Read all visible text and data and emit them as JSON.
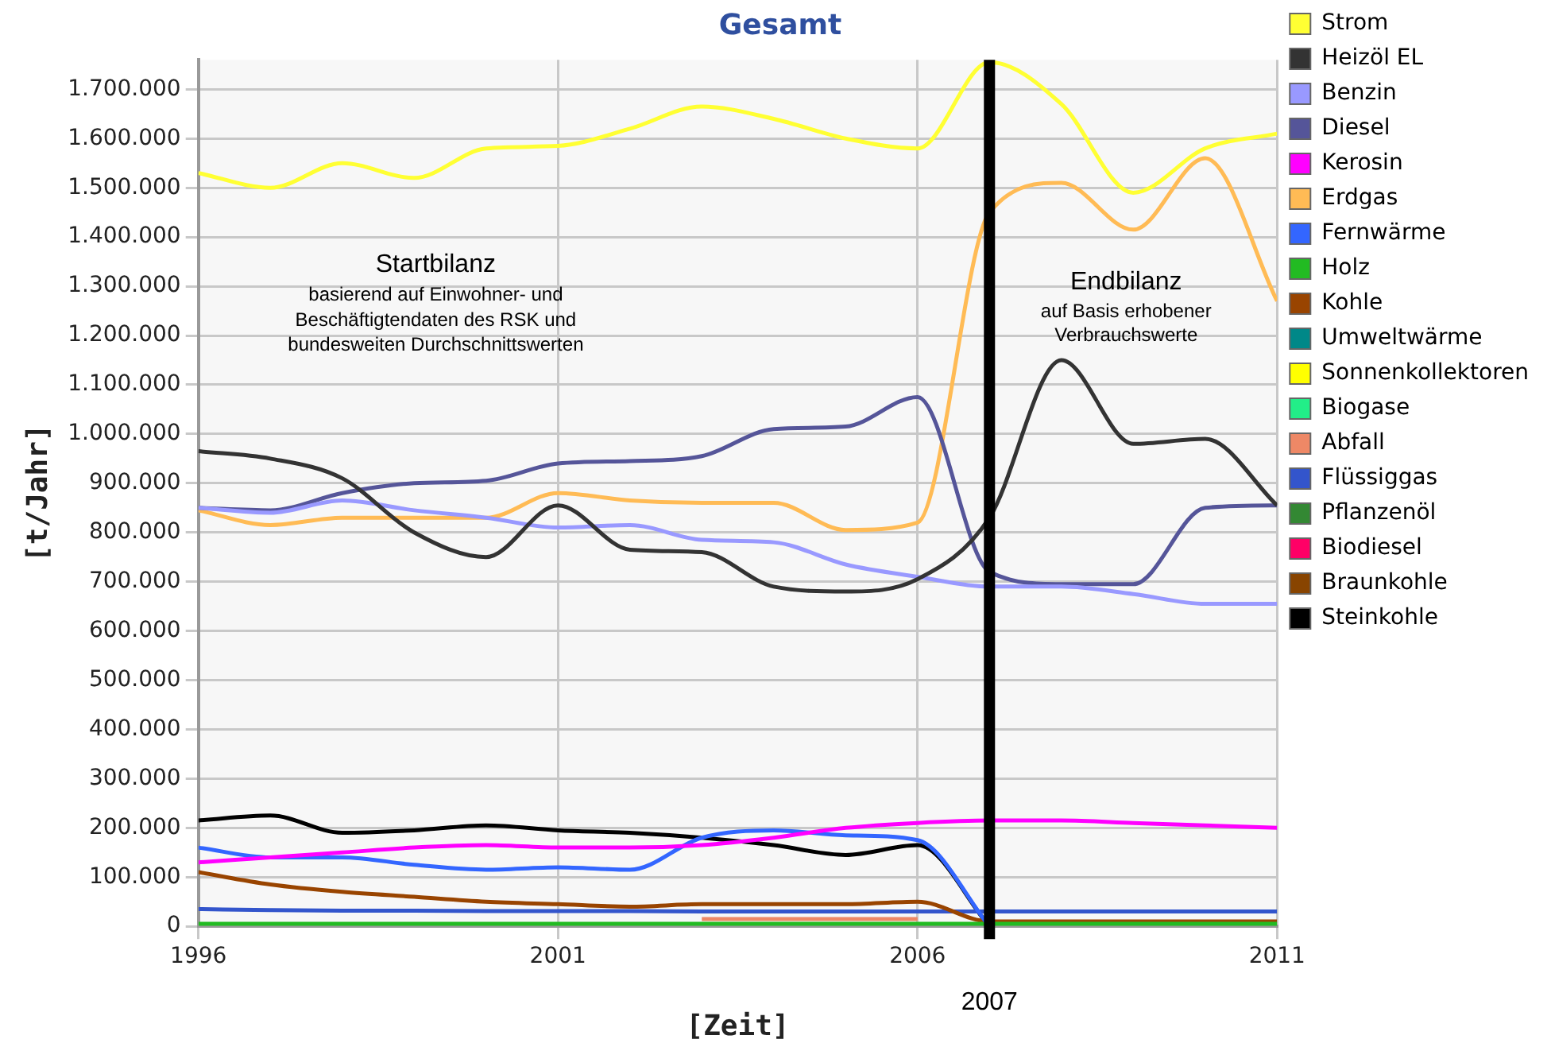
{
  "chart_data": {
    "type": "line",
    "title": "Gesamt",
    "xlabel": "[Zeit]",
    "ylabel": "[t/Jahr]",
    "x": [
      1996,
      1997,
      1998,
      1999,
      2000,
      2001,
      2002,
      2003,
      2004,
      2005,
      2006,
      2007,
      2008,
      2009,
      2010,
      2011
    ],
    "xlim": [
      1996,
      2011
    ],
    "xticks": [
      1996,
      2001,
      2006,
      2011
    ],
    "ylim": [
      0,
      1760000
    ],
    "yticks": [
      0,
      {
        "value": 100000,
        "label": "100.000"
      },
      {
        "value": 200000,
        "label": "200.000"
      },
      {
        "value": 300000,
        "label": "300.000"
      },
      {
        "value": 400000,
        "label": "400.000"
      },
      {
        "value": 500000,
        "label": "500.000"
      },
      {
        "value": 600000,
        "label": "600.000"
      },
      {
        "value": 700000,
        "label": "700.000"
      },
      {
        "value": 800000,
        "label": "800.000"
      },
      {
        "value": 900000,
        "label": "900.000"
      },
      {
        "value": 1000000,
        "label": "1.000.000"
      },
      {
        "value": 1100000,
        "label": "1.100.000"
      },
      {
        "value": 1200000,
        "label": "1.200.000"
      },
      {
        "value": 1300000,
        "label": "1.300.000"
      },
      {
        "value": 1400000,
        "label": "1.400.000"
      },
      {
        "value": 1500000,
        "label": "1.500.000"
      },
      {
        "value": 1600000,
        "label": "1.600.000"
      },
      {
        "value": 1700000,
        "label": "1.700.000"
      }
    ],
    "grid": true,
    "legend": "right",
    "marker": "none",
    "line_style": "solid",
    "series": [
      {
        "name": "Strom",
        "color": "#ffff33",
        "values": [
          1530000,
          1500000,
          1550000,
          1520000,
          1580000,
          1585000,
          1620000,
          1665000,
          1640000,
          1600000,
          1580000,
          1755000,
          1670000,
          1490000,
          1580000,
          1610000
        ]
      },
      {
        "name": "Heizöl EL",
        "color": "#333333",
        "values": [
          965000,
          950000,
          910000,
          800000,
          750000,
          855000,
          765000,
          760000,
          690000,
          680000,
          705000,
          830000,
          1150000,
          980000,
          990000,
          855000
        ]
      },
      {
        "name": "Benzin",
        "color": "#9999ff",
        "values": [
          850000,
          840000,
          865000,
          845000,
          830000,
          810000,
          815000,
          785000,
          780000,
          735000,
          710000,
          690000,
          690000,
          675000,
          655000,
          655000
        ]
      },
      {
        "name": "Diesel",
        "color": "#555599",
        "values": [
          850000,
          845000,
          880000,
          900000,
          905000,
          940000,
          945000,
          955000,
          1010000,
          1015000,
          1075000,
          720000,
          695000,
          695000,
          850000,
          855000
        ]
      },
      {
        "name": "Kerosin",
        "color": "#ff00ff",
        "values": [
          130000,
          140000,
          150000,
          160000,
          165000,
          160000,
          160000,
          165000,
          180000,
          200000,
          210000,
          215000,
          215000,
          210000,
          205000,
          200000
        ]
      },
      {
        "name": "Erdgas",
        "color": "#ffbb55",
        "values": [
          845000,
          815000,
          830000,
          830000,
          830000,
          880000,
          865000,
          860000,
          860000,
          805000,
          820000,
          1450000,
          1510000,
          1415000,
          1560000,
          1270000
        ]
      },
      {
        "name": "Fernwärme",
        "color": "#3366ff",
        "values": [
          160000,
          140000,
          140000,
          125000,
          115000,
          120000,
          115000,
          180000,
          195000,
          185000,
          175000,
          0,
          null,
          null,
          null,
          null
        ]
      },
      {
        "name": "Holz",
        "color": "#22bb22",
        "values": [
          5000,
          5000,
          5000,
          5000,
          5000,
          5000,
          5000,
          5000,
          5000,
          5000,
          5000,
          5000,
          5000,
          5000,
          5000,
          5000
        ]
      },
      {
        "name": "Kohle",
        "color": "#994400",
        "values": [
          110000,
          85000,
          70000,
          60000,
          50000,
          45000,
          40000,
          45000,
          45000,
          45000,
          50000,
          10000,
          10000,
          10000,
          10000,
          10000
        ]
      },
      {
        "name": "Umweltwärme",
        "color": "#008888",
        "values": [
          null,
          null,
          null,
          null,
          null,
          null,
          null,
          null,
          null,
          null,
          null,
          null,
          null,
          null,
          null,
          null
        ]
      },
      {
        "name": "Sonnenkollektoren",
        "color": "#ffff00",
        "values": [
          null,
          null,
          null,
          null,
          null,
          null,
          null,
          null,
          null,
          null,
          null,
          null,
          null,
          null,
          null,
          null
        ]
      },
      {
        "name": "Biogase",
        "color": "#22ee88",
        "values": [
          null,
          null,
          null,
          null,
          null,
          null,
          null,
          null,
          null,
          null,
          null,
          null,
          null,
          null,
          null,
          null
        ]
      },
      {
        "name": "Abfall",
        "color": "#ee8866",
        "values": [
          null,
          null,
          null,
          null,
          null,
          null,
          null,
          15000,
          15000,
          15000,
          15000,
          null,
          null,
          null,
          null,
          null
        ]
      },
      {
        "name": "Flüssiggas",
        "color": "#3355cc",
        "values": [
          35000,
          33000,
          32000,
          32000,
          31000,
          31000,
          31000,
          30000,
          30000,
          30000,
          30000,
          30000,
          30000,
          30000,
          30000,
          30000
        ]
      },
      {
        "name": "Pflanzenöl",
        "color": "#338833",
        "values": [
          null,
          null,
          null,
          null,
          null,
          null,
          null,
          null,
          null,
          null,
          null,
          null,
          null,
          null,
          null,
          null
        ]
      },
      {
        "name": "Biodiesel",
        "color": "#ff0066",
        "values": [
          null,
          null,
          null,
          null,
          null,
          null,
          null,
          null,
          null,
          null,
          null,
          null,
          null,
          null,
          null,
          null
        ]
      },
      {
        "name": "Braunkohle",
        "color": "#884400",
        "values": [
          null,
          null,
          null,
          null,
          null,
          null,
          null,
          null,
          null,
          null,
          null,
          null,
          null,
          null,
          null,
          null
        ]
      },
      {
        "name": "Steinkohle",
        "color": "#000000",
        "values": [
          215000,
          225000,
          190000,
          195000,
          205000,
          195000,
          190000,
          180000,
          165000,
          145000,
          165000,
          0,
          null,
          null,
          null,
          null
        ]
      }
    ],
    "ref_lines": [
      {
        "axis": "x",
        "value": 2007,
        "label": "2007",
        "color": "#000000"
      }
    ],
    "annotations": [
      "Startbilanz",
      "basierend auf Einwohner- und",
      "Beschäftigtendaten des RSK und",
      "bundesweiten Durchschnittswerten",
      "Endbilanz",
      "auf Basis erhobener",
      "Verbrauchswerte"
    ]
  }
}
